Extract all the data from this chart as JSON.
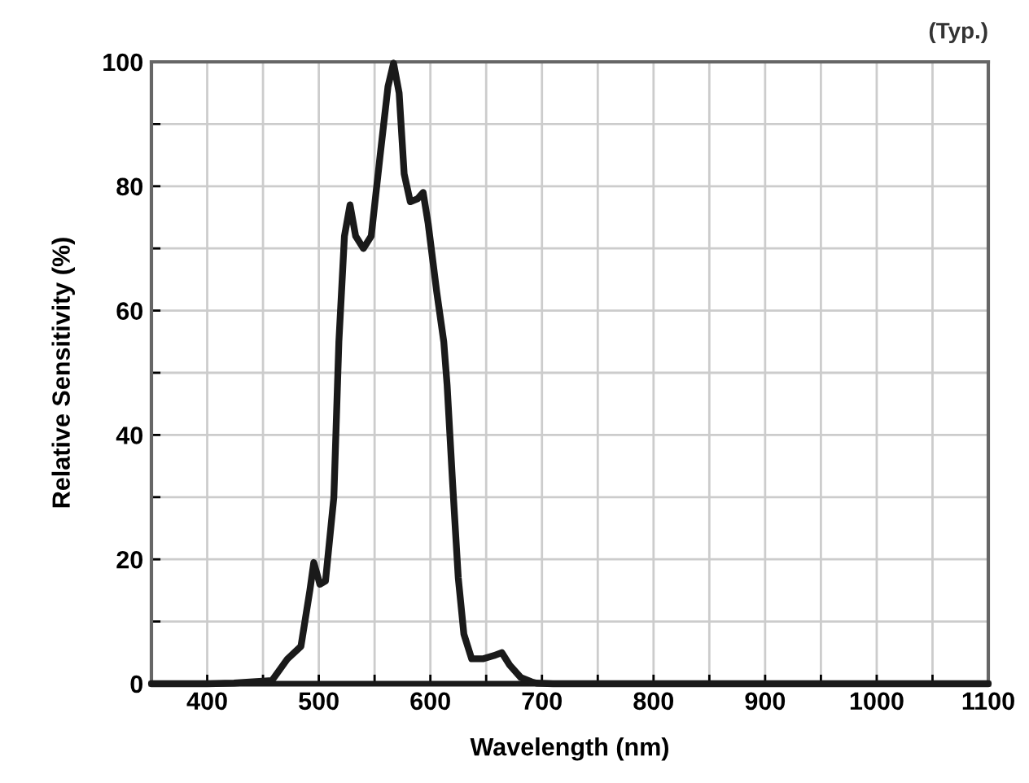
{
  "chart_data": {
    "type": "line",
    "xlabel": "Wavelength (nm)",
    "ylabel": "Relative Sensitivity (%)",
    "annotations": [
      "(Typ.)"
    ],
    "xlim": [
      350,
      1100
    ],
    "ylim": [
      0,
      100
    ],
    "xticks": [
      {
        "value": 350,
        "label": null
      },
      400,
      {
        "value": 450,
        "label": null
      },
      500,
      {
        "value": 550,
        "label": null
      },
      600,
      {
        "value": 650,
        "label": null
      },
      700,
      {
        "value": 750,
        "label": null
      },
      800,
      {
        "value": 850,
        "label": null
      },
      900,
      {
        "value": 950,
        "label": null
      },
      1000,
      {
        "value": 1050,
        "label": null
      },
      1100
    ],
    "yticks": [
      0,
      {
        "value": 10,
        "label": null
      },
      20,
      {
        "value": 30,
        "label": null
      },
      40,
      {
        "value": 50,
        "label": null
      },
      60,
      {
        "value": 70,
        "label": null
      },
      80,
      {
        "value": 90,
        "label": null
      },
      100
    ],
    "grid": true,
    "marker": "none",
    "line_style": "solid",
    "series": [
      {
        "color": "#1a1a1a",
        "x": [
          350,
          400,
          424,
          458,
          472,
          484,
          492,
          495.5,
          501,
          506,
          513.5,
          518,
          523,
          528,
          533,
          540,
          547,
          555,
          562,
          567,
          572,
          576.5,
          582,
          588.7,
          593.5,
          598,
          605.7,
          612,
          615,
          620,
          625,
          630,
          637,
          647,
          656.7,
          664,
          671,
          681,
          690.6,
          695,
          710,
          800,
          900,
          1000,
          1100
        ],
        "values": [
          0,
          0,
          0.1,
          0.5,
          4,
          6,
          15,
          19.5,
          16,
          16.5,
          30,
          55,
          72,
          77,
          72,
          70,
          72,
          85,
          96,
          99.8,
          95,
          82,
          77.5,
          78,
          79,
          74,
          63,
          55,
          48,
          32,
          17,
          8,
          4,
          4,
          4.5,
          5,
          3,
          1,
          0.3,
          0.1,
          0,
          0,
          0,
          0,
          0
        ]
      }
    ]
  }
}
